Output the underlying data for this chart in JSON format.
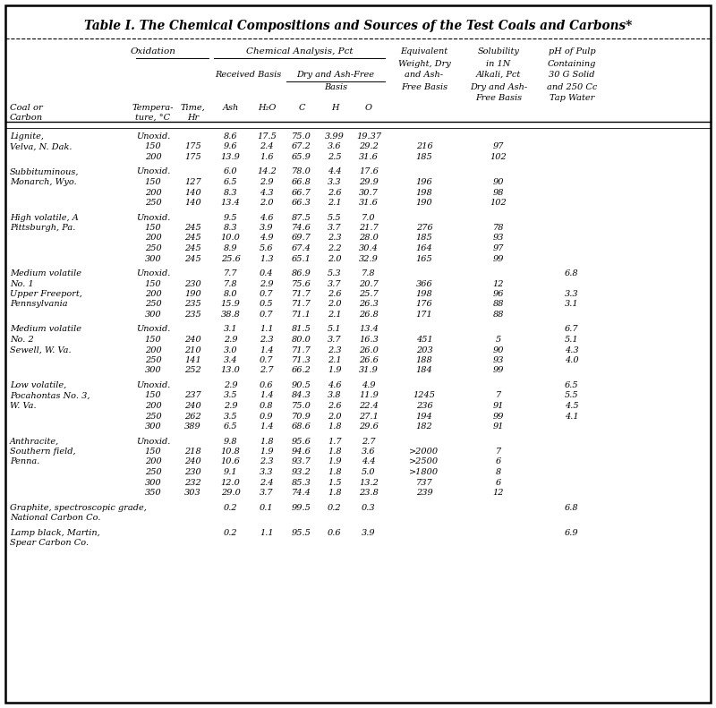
{
  "title": "Table I. The Chemical Compositions and Sources of the Test Coals and Carbons*",
  "row_groups": [
    {
      "name": [
        "Lignite,",
        "Velva, N. Dak."
      ],
      "subrows": [
        [
          "Unoxid.",
          "",
          "8.6",
          "17.5",
          "75.0",
          "3.99",
          "19.37",
          "",
          "",
          ""
        ],
        [
          "150",
          "175",
          "9.6",
          "2.4",
          "67.2",
          "3.6",
          "29.2",
          "216",
          "97",
          ""
        ],
        [
          "200",
          "175",
          "13.9",
          "1.6",
          "65.9",
          "2.5",
          "31.6",
          "185",
          "102",
          ""
        ]
      ]
    },
    {
      "name": [
        "Subbituminous,",
        "Monarch, Wyo."
      ],
      "subrows": [
        [
          "Unoxid.",
          "",
          "6.0",
          "14.2",
          "78.0",
          "4.4",
          "17.6",
          "",
          "",
          ""
        ],
        [
          "150",
          "127",
          "6.5",
          "2.9",
          "66.8",
          "3.3",
          "29.9",
          "196",
          "90",
          ""
        ],
        [
          "200",
          "140",
          "8.3",
          "4.3",
          "66.7",
          "2.6",
          "30.7",
          "198",
          "98",
          ""
        ],
        [
          "250",
          "140",
          "13.4",
          "2.0",
          "66.3",
          "2.1",
          "31.6",
          "190",
          "102",
          ""
        ]
      ]
    },
    {
      "name": [
        "High volatile, A",
        "Pittsburgh, Pa."
      ],
      "subrows": [
        [
          "Unoxid.",
          "",
          "9.5",
          "4.6",
          "87.5",
          "5.5",
          "7.0",
          "",
          "",
          ""
        ],
        [
          "150",
          "245",
          "8.3",
          "3.9",
          "74.6",
          "3.7",
          "21.7",
          "276",
          "78",
          ""
        ],
        [
          "200",
          "245",
          "10.0",
          "4.9",
          "69.7",
          "2.3",
          "28.0",
          "185",
          "93",
          ""
        ],
        [
          "250",
          "245",
          "8.9",
          "5.6",
          "67.4",
          "2.2",
          "30.4",
          "164",
          "97",
          ""
        ],
        [
          "300",
          "245",
          "25.6",
          "1.3",
          "65.1",
          "2.0",
          "32.9",
          "165",
          "99",
          ""
        ]
      ]
    },
    {
      "name": [
        "Medium volatile",
        "No. 1",
        "Upper Freeport,",
        "Pennsylvania"
      ],
      "subrows": [
        [
          "Unoxid.",
          "",
          "7.7",
          "0.4",
          "86.9",
          "5.3",
          "7.8",
          "",
          "",
          "6.8"
        ],
        [
          "150",
          "230",
          "7.8",
          "2.9",
          "75.6",
          "3.7",
          "20.7",
          "366",
          "12",
          ""
        ],
        [
          "200",
          "190",
          "8.0",
          "0.7",
          "71.7",
          "2.6",
          "25.7",
          "198",
          "96",
          "3.3"
        ],
        [
          "250",
          "235",
          "15.9",
          "0.5",
          "71.7",
          "2.0",
          "26.3",
          "176",
          "88",
          "3.1"
        ],
        [
          "300",
          "235",
          "38.8",
          "0.7",
          "71.1",
          "2.1",
          "26.8",
          "171",
          "88",
          ""
        ]
      ]
    },
    {
      "name": [
        "Medium volatile",
        "No. 2",
        "Sewell, W. Va."
      ],
      "subrows": [
        [
          "Unoxid.",
          "",
          "3.1",
          "1.1",
          "81.5",
          "5.1",
          "13.4",
          "",
          "",
          "6.7"
        ],
        [
          "150",
          "240",
          "2.9",
          "2.3",
          "80.0",
          "3.7",
          "16.3",
          "451",
          "5",
          "5.1"
        ],
        [
          "200",
          "210",
          "3.0",
          "1.4",
          "71.7",
          "2.3",
          "26.0",
          "203",
          "90",
          "4.3"
        ],
        [
          "250",
          "141",
          "3.4",
          "0.7",
          "71.3",
          "2.1",
          "26.6",
          "188",
          "93",
          "4.0"
        ],
        [
          "300",
          "252",
          "13.0",
          "2.7",
          "66.2",
          "1.9",
          "31.9",
          "184",
          "99",
          ""
        ]
      ]
    },
    {
      "name": [
        "Low volatile,",
        "Pocahontas No. 3,",
        "W. Va."
      ],
      "subrows": [
        [
          "Unoxid.",
          "",
          "2.9",
          "0.6",
          "90.5",
          "4.6",
          "4.9",
          "",
          "",
          "6.5"
        ],
        [
          "150",
          "237",
          "3.5",
          "1.4",
          "84.3",
          "3.8",
          "11.9",
          "1245",
          "7",
          "5.5"
        ],
        [
          "200",
          "240",
          "2.9",
          "0.8",
          "75.0",
          "2.6",
          "22.4",
          "236",
          "91",
          "4.5"
        ],
        [
          "250",
          "262",
          "3.5",
          "0.9",
          "70.9",
          "2.0",
          "27.1",
          "194",
          "99",
          "4.1"
        ],
        [
          "300",
          "389",
          "6.5",
          "1.4",
          "68.6",
          "1.8",
          "29.6",
          "182",
          "91",
          ""
        ]
      ]
    },
    {
      "name": [
        "Anthracite,",
        "Southern field,",
        "Penna."
      ],
      "subrows": [
        [
          "Unoxid.",
          "",
          "9.8",
          "1.8",
          "95.6",
          "1.7",
          "2.7",
          "",
          "",
          ""
        ],
        [
          "150",
          "218",
          "10.8",
          "1.9",
          "94.6",
          "1.8",
          "3.6",
          ">2000",
          "7",
          ""
        ],
        [
          "200",
          "240",
          "10.6",
          "2.3",
          "93.7",
          "1.9",
          "4.4",
          ">2500",
          "6",
          ""
        ],
        [
          "250",
          "230",
          "9.1",
          "3.3",
          "93.2",
          "1.8",
          "5.0",
          ">1800",
          "8",
          ""
        ],
        [
          "300",
          "232",
          "12.0",
          "2.4",
          "85.3",
          "1.5",
          "13.2",
          "737",
          "6",
          ""
        ],
        [
          "350",
          "303",
          "29.0",
          "3.7",
          "74.4",
          "1.8",
          "23.8",
          "239",
          "12",
          ""
        ]
      ]
    },
    {
      "name": [
        "Graphite, spectroscopic grade,",
        "National Carbon Co."
      ],
      "subrows": [
        [
          "",
          "",
          "0.2",
          "0.1",
          "99.5",
          "0.2",
          "0.3",
          "",
          "",
          "6.8"
        ]
      ]
    },
    {
      "name": [
        "Lamp black, Martin,",
        "Spear Carbon Co."
      ],
      "subrows": [
        [
          "",
          "",
          "0.2",
          "1.1",
          "95.5",
          "0.6",
          "3.9",
          "",
          "",
          "6.9"
        ]
      ]
    }
  ]
}
